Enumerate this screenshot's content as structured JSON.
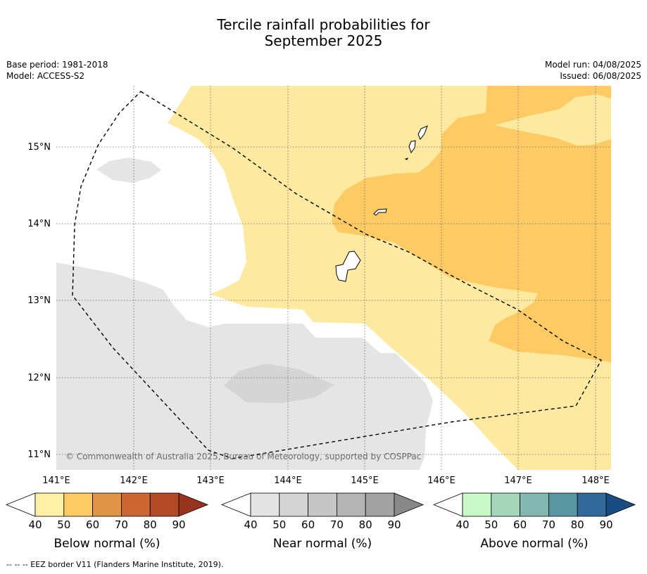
{
  "title_line1": "Tercile rainfall probabilities for",
  "title_line2": "September 2025",
  "meta": {
    "base_period": "Base period: 1981-2018",
    "model": "Model: ACCESS-S2",
    "model_run": "Model run: 04/08/2025",
    "issued": "Issued: 06/08/2025"
  },
  "map": {
    "lon_labels": [
      "141°E",
      "142°E",
      "143°E",
      "144°E",
      "145°E",
      "146°E",
      "147°E",
      "148°E"
    ],
    "lat_labels": [
      "15°N",
      "14°N",
      "13°N",
      "12°N",
      "11°N"
    ],
    "copyright": "© Commonwealth of Australia 2025, Bureau of Meteorology, supported by COSPPac",
    "colors": {
      "below_50": "#fde9a0",
      "below_60": "#fdca64",
      "near_40": "#e5e5e5",
      "near_50": "#d5d5d5"
    }
  },
  "colorbars": [
    {
      "label": "Below normal (%)",
      "ticks": [
        "40",
        "50",
        "60",
        "70",
        "80",
        "90"
      ],
      "colors": [
        "#fef0a5",
        "#fdca64",
        "#e09447",
        "#cc6733",
        "#b24a27",
        "#973420"
      ]
    },
    {
      "label": "Near normal (%)",
      "ticks": [
        "40",
        "50",
        "60",
        "70",
        "80",
        "90"
      ],
      "colors": [
        "#e4e4e4",
        "#d4d4d4",
        "#c6c6c6",
        "#b4b4b4",
        "#a2a2a2",
        "#888888"
      ]
    },
    {
      "label": "Above normal (%)",
      "ticks": [
        "40",
        "50",
        "60",
        "70",
        "80",
        "90"
      ],
      "colors": [
        "#c9f8c9",
        "#a5d6bc",
        "#83b8b0",
        "#5a96a2",
        "#336a9a",
        "#194c83"
      ]
    }
  ],
  "footnote": "--  --  -- EEZ border V11 (Flanders Marine Institute, 2019)."
}
